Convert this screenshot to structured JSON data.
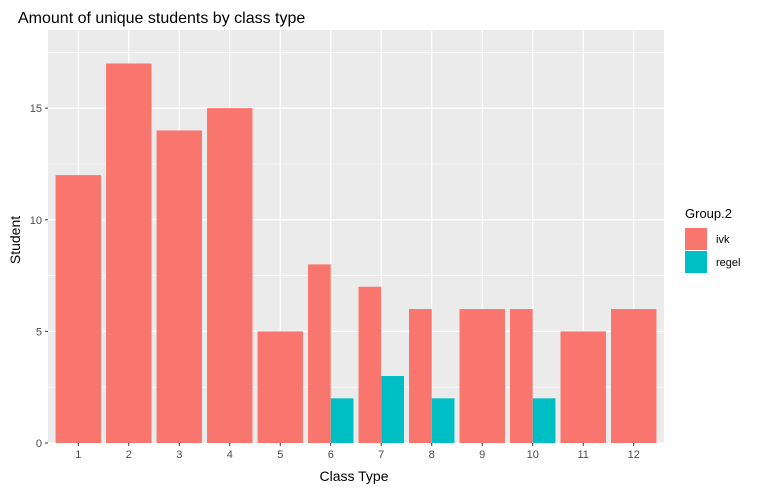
{
  "chart_data": {
    "type": "bar",
    "title": "Amount of unique students by class type",
    "xlabel": "Class Type",
    "ylabel": "Student",
    "categories": [
      "1",
      "2",
      "3",
      "4",
      "5",
      "6",
      "7",
      "8",
      "9",
      "10",
      "11",
      "12"
    ],
    "ylim": [
      0,
      18.5
    ],
    "yticks": [
      0,
      5,
      10,
      15
    ],
    "position": "dodge",
    "legend": {
      "title": "Group.2",
      "placement": "right",
      "entries": [
        "ivk",
        "regel"
      ]
    },
    "series": [
      {
        "name": "ivk",
        "color": "#F8766D",
        "values": [
          12,
          17,
          14,
          15,
          5,
          8,
          7,
          6,
          6,
          6,
          5,
          6
        ]
      },
      {
        "name": "regel",
        "color": "#00BFC4",
        "values": [
          null,
          null,
          null,
          null,
          null,
          2,
          3,
          2,
          null,
          2,
          null,
          null
        ]
      }
    ],
    "panel_background": "#EBEBEB",
    "grid": true
  }
}
